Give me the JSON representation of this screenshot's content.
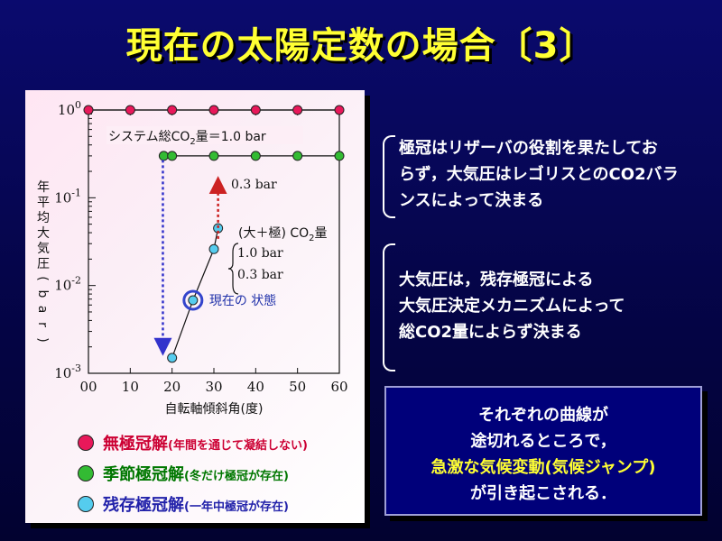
{
  "title": "現在の太陽定数の場合〔3〕",
  "chart_data": {
    "type": "scatter",
    "xlabel": "自転軸傾斜角(度)",
    "ylabel": "年平均大気圧(bar)",
    "xlim": [
      0,
      60
    ],
    "ylim": [
      0.001,
      1
    ],
    "yscale": "log",
    "x_ticks": [
      "00",
      "10",
      "20",
      "30",
      "40",
      "50",
      "60"
    ],
    "y_ticks": [
      {
        "base": "10",
        "exp": "0"
      },
      {
        "base": "10",
        "exp": "-1"
      },
      {
        "base": "10",
        "exp": "-2"
      },
      {
        "base": "10",
        "exp": "-3"
      }
    ],
    "series": [
      {
        "name": "無極冠解",
        "color": "#e8185a",
        "marker": "circle",
        "x": [
          0,
          10,
          20,
          30,
          40,
          50,
          60
        ],
        "y": [
          1.0,
          1.0,
          1.0,
          1.0,
          1.0,
          1.0,
          1.0
        ]
      },
      {
        "name": "季節極冠解",
        "color": "#33bb33",
        "marker": "circle",
        "x": [
          18,
          20,
          30,
          40,
          50,
          60
        ],
        "y": [
          0.3,
          0.3,
          0.3,
          0.3,
          0.3,
          0.3
        ]
      },
      {
        "name": "残存極冠解",
        "color": "#55ccee",
        "marker": "circle",
        "x": [
          20,
          25,
          30,
          31
        ],
        "y": [
          0.0015,
          0.0068,
          0.026,
          0.045
        ]
      }
    ],
    "annotations": {
      "line1_label": "システム総CO2量＝1.0 bar",
      "line2_label": "0.3 bar",
      "bracket_title": "(大＋極) CO2量",
      "bracket_1": "1.0 bar",
      "bracket_2": "0.3 bar",
      "current_state_label": "現在の 状態",
      "current_state": {
        "x": 25,
        "y": 0.0068
      }
    }
  },
  "legend": [
    {
      "label": "無極冠解",
      "note": "(年間を通じて凝結しない)",
      "color": "#e8185a"
    },
    {
      "label": "季節極冠解",
      "note": "(冬だけ極冠が存在)",
      "color": "#33bb33"
    },
    {
      "label": "残存極冠解",
      "note": "(一年中極冠が存在)",
      "color": "#55ccee"
    }
  ],
  "right_text_1": "極冠はリザーバの役割を果たしてお\nらず，大気圧はレゴリスとのCO2バラ\nンスによって決まる",
  "right_text_2": "大気圧は，残存極冠による\n大気圧決定メカニズムによって\n総CO2量によらず決まる",
  "box": {
    "line1": "それぞれの曲線が",
    "line2": "途切れるところで，",
    "line3": "急激な気候変動(気候ジャンプ)",
    "line4": "が引き起こされる．"
  },
  "colors": {
    "title": "#ffff33",
    "box_highlight": "#ffff33",
    "box_text": "#ffffff",
    "arrow_down": "#3333cc",
    "arrow_up": "#cc2222"
  }
}
